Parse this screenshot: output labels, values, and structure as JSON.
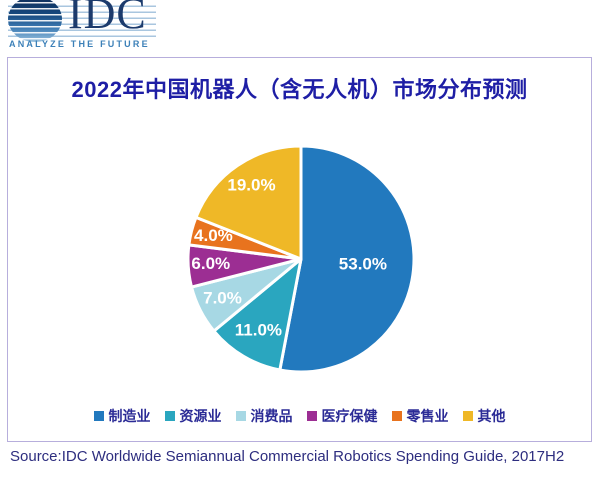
{
  "logo": {
    "text": "IDC",
    "tagline": "ANALYZE THE FUTURE"
  },
  "panel": {
    "title": "2022年中国机器人（含无人机）市场分布预测"
  },
  "source": {
    "text": "Source:IDC Worldwide Semiannual Commercial Robotics Spending Guide, 2017H2"
  },
  "colors": {
    "title_text": "#1E1EA5",
    "legend_text": "#2B2B96",
    "source_text": "#2D2D7F",
    "panel_border": "#B7AEDC",
    "logo_navy": "#1C3B6D",
    "logo_tagline_blue": "#3C80B8",
    "slice_label_text": "#FFFFFF"
  },
  "chart_data": {
    "type": "pie",
    "title": "2022年中国机器人（含无人机）市场分布预测",
    "units": "percent",
    "total": 100,
    "start_angle_deg": 0,
    "direction": "clockwise",
    "legend_position": "bottom",
    "value_label_format": "one_decimal_percent",
    "segments": [
      {
        "key": "manufacturing",
        "label": "制造业",
        "value": 53.0,
        "color": "#2279BE",
        "label_r": 0.55
      },
      {
        "key": "resources",
        "label": "资源业",
        "value": 11.0,
        "color": "#2AA6BF",
        "label_r": 0.74
      },
      {
        "key": "consumer-goods",
        "label": "消费品",
        "value": 7.0,
        "color": "#A7D8E4",
        "label_r": 0.78
      },
      {
        "key": "healthcare",
        "label": "医疗保健",
        "value": 6.0,
        "color": "#9C2E93",
        "label_r": 0.8
      },
      {
        "key": "retail",
        "label": "零售业",
        "value": 4.0,
        "color": "#E8731E",
        "label_r": 0.8
      },
      {
        "key": "other",
        "label": "其他",
        "value": 19.0,
        "color": "#EFB827",
        "label_r": 0.78
      }
    ]
  }
}
